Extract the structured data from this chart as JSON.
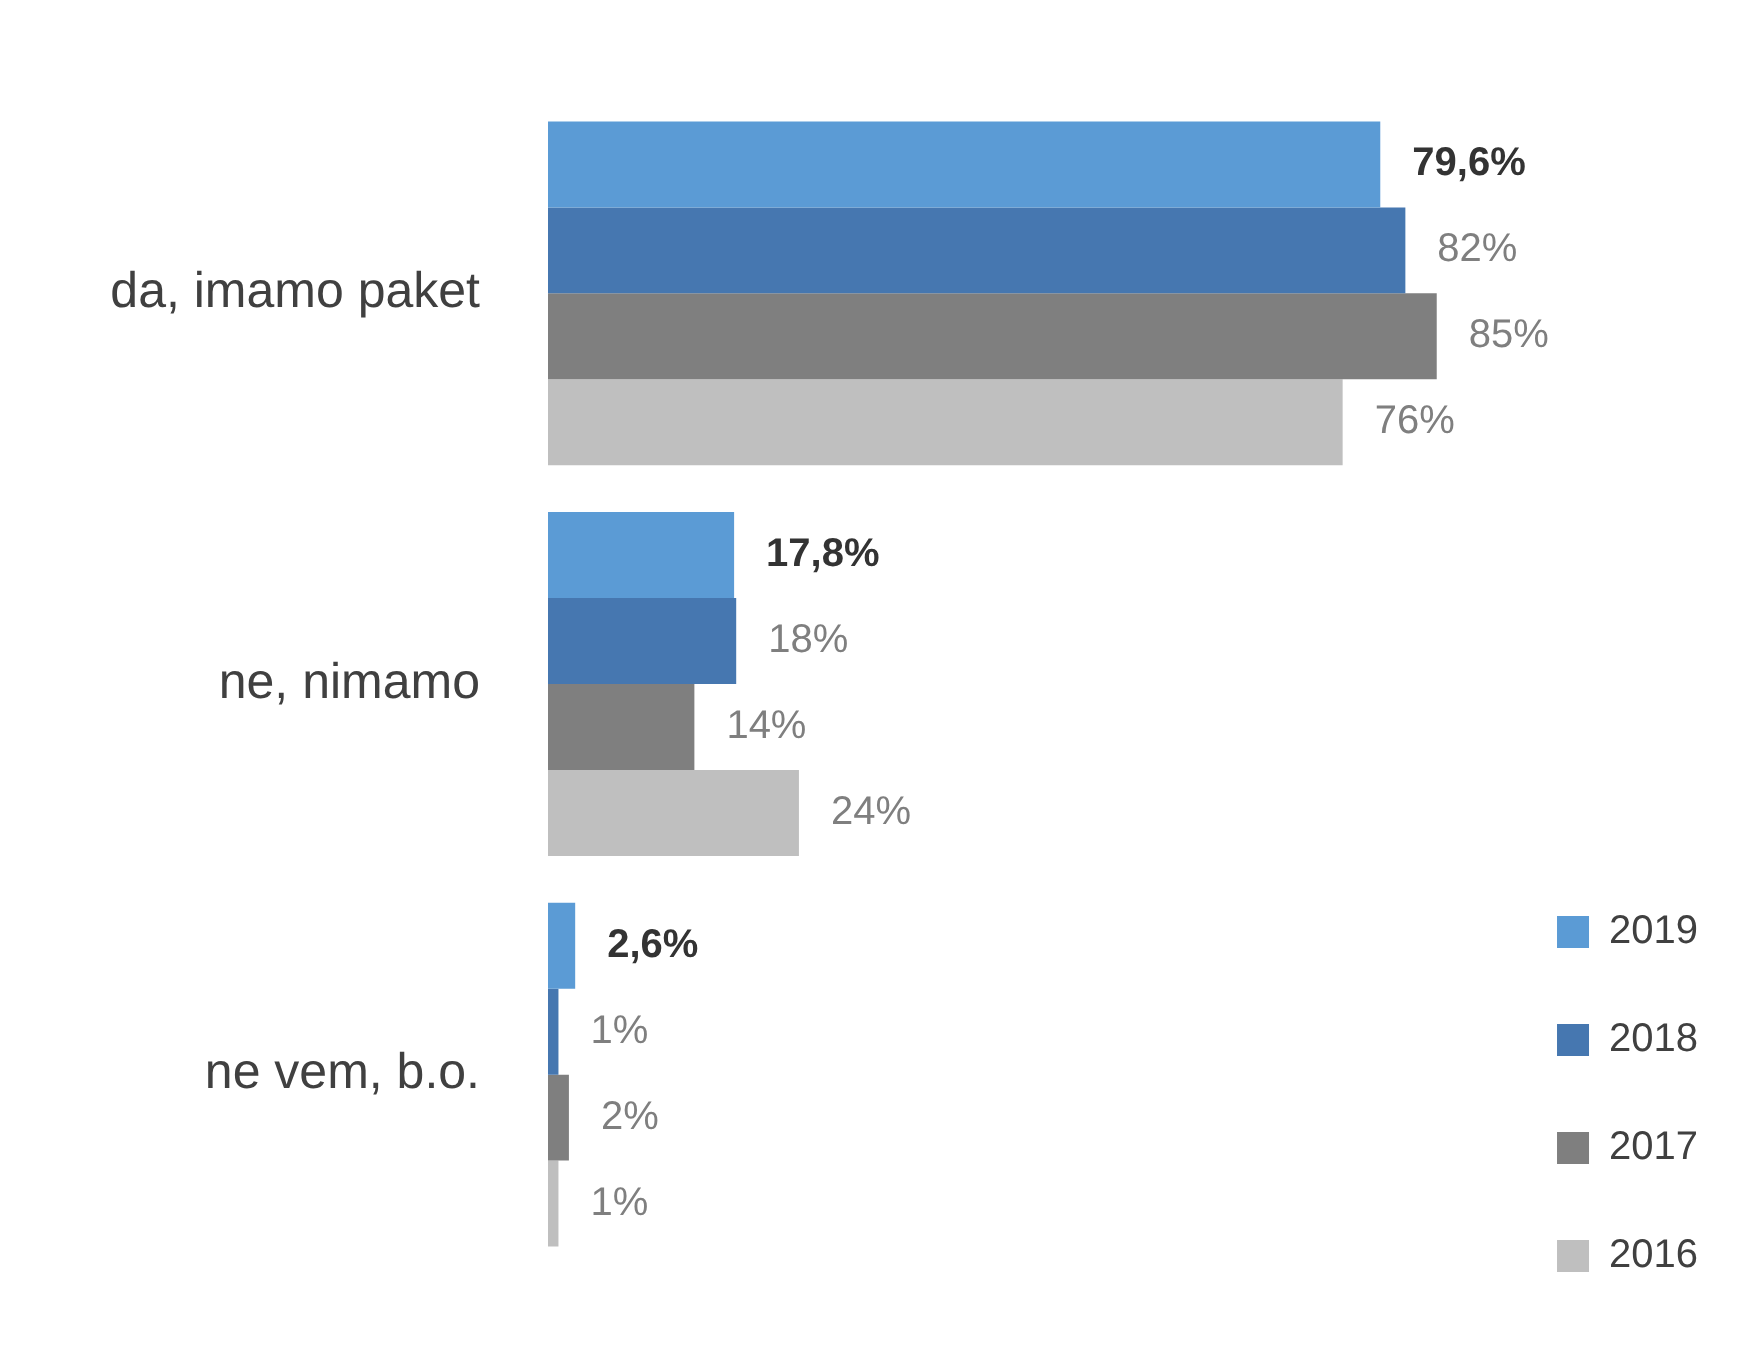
{
  "chart_data": {
    "type": "bar",
    "orientation": "horizontal",
    "categories": [
      "da, imamo paket",
      "ne, nimamo",
      "ne vem, b.o."
    ],
    "series": [
      {
        "name": "2019",
        "color": "#5b9bd5",
        "values": [
          79.6,
          17.8,
          2.6
        ],
        "value_labels": [
          "79,6%",
          "17,8%",
          "2,6%"
        ]
      },
      {
        "name": "2018",
        "color": "#4677b0",
        "values": [
          82,
          18,
          1
        ],
        "value_labels": [
          "82%",
          "18%",
          "1%"
        ]
      },
      {
        "name": "2017",
        "color": "#7f7f7f",
        "values": [
          85,
          14,
          2
        ],
        "value_labels": [
          "85%",
          "14%",
          "2%"
        ]
      },
      {
        "name": "2016",
        "color": "#bfbfbf",
        "values": [
          76,
          24,
          1
        ],
        "value_labels": [
          "76%",
          "24%",
          "1%"
        ]
      }
    ],
    "legend": "bottom right"
  }
}
